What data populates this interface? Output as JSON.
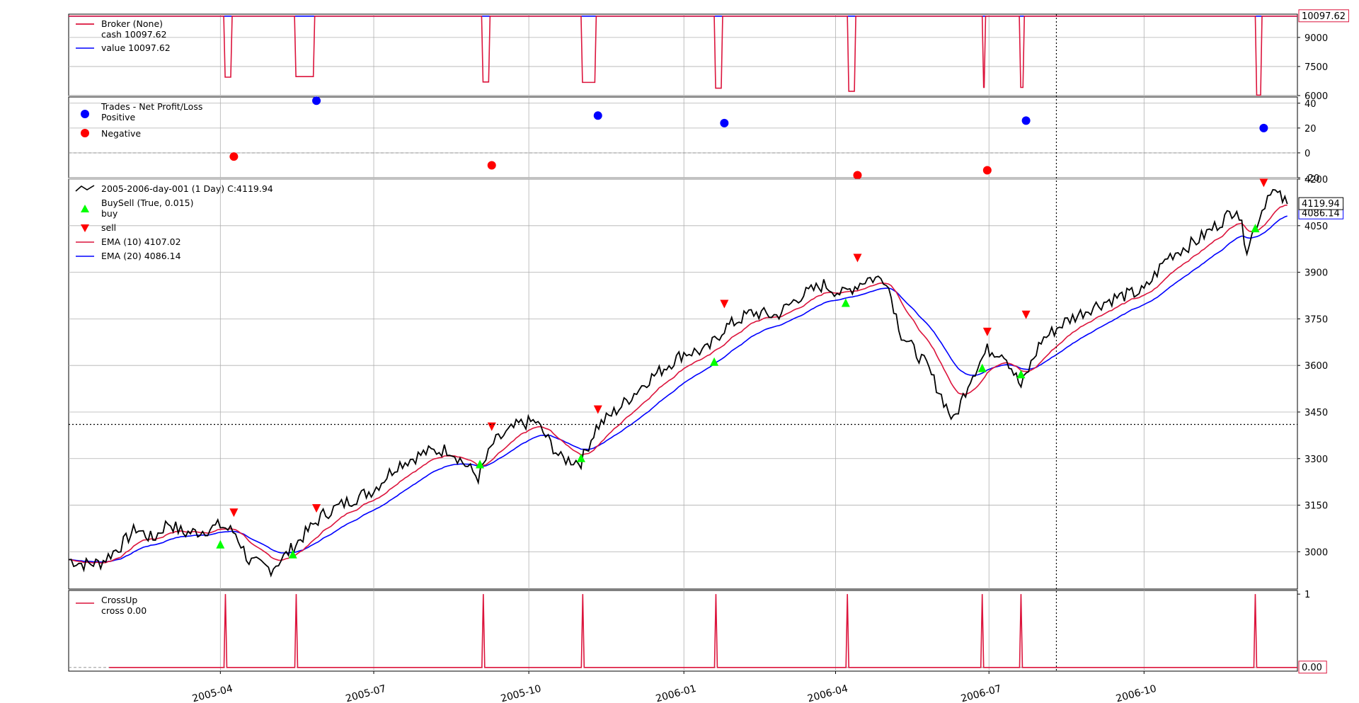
{
  "chart_data": [
    {
      "panel": "broker",
      "type": "line",
      "legend": {
        "title": "Broker (None)",
        "entries": [
          {
            "label": "cash 10097.62",
            "color": "#dc143c"
          },
          {
            "label": "value 10097.62",
            "color": "#0000ff"
          }
        ]
      },
      "ylim": [
        6000,
        10200
      ],
      "yticks": [
        "6000",
        "7500",
        "9000"
      ],
      "last_value_label": "10097.62",
      "grid": true,
      "series": [
        {
          "name": "cash",
          "color": "#dc143c",
          "segments": [
            {
              "x0": "2005-04-03",
              "x1": "2005-04-08",
              "low": 6950
            },
            {
              "x0": "2005-05-15",
              "x1": "2005-05-27",
              "low": 6980
            },
            {
              "x0": "2005-09-03",
              "x1": "2005-09-08",
              "low": 6700
            },
            {
              "x0": "2005-11-01",
              "x1": "2005-11-10",
              "low": 6680
            },
            {
              "x0": "2006-01-19",
              "x1": "2006-01-24",
              "low": 6380
            },
            {
              "x0": "2006-04-08",
              "x1": "2006-04-13",
              "low": 6220
            },
            {
              "x0": "2006-06-27",
              "x1": "2006-06-29",
              "low": 6420
            },
            {
              "x0": "2006-07-19",
              "x1": "2006-07-22",
              "low": 6420
            },
            {
              "x0": "2006-12-06",
              "x1": "2006-12-10",
              "low": 6020
            }
          ],
          "baseline": 10097.62
        },
        {
          "name": "value",
          "color": "#0000ff",
          "baseline": 10097.62
        }
      ]
    },
    {
      "panel": "trades",
      "type": "scatter",
      "legend": {
        "title": "Trades - Net Profit/Loss",
        "entries": [
          {
            "label": "Positive",
            "color": "#0000ff"
          },
          {
            "label": "Negative",
            "color": "#ff0000"
          }
        ]
      },
      "ylim": [
        -20,
        45
      ],
      "yticks": [
        "-20",
        "0",
        "20",
        "40"
      ],
      "grid": true,
      "series": [
        {
          "name": "Positive",
          "color": "#0000ff",
          "points": [
            {
              "x": "2005-05-28",
              "y": 42
            },
            {
              "x": "2005-11-11",
              "y": 30
            },
            {
              "x": "2006-01-25",
              "y": 24
            },
            {
              "x": "2006-07-23",
              "y": 26
            },
            {
              "x": "2006-12-11",
              "y": 20
            }
          ]
        },
        {
          "name": "Negative",
          "color": "#ff0000",
          "points": [
            {
              "x": "2005-04-09",
              "y": -3
            },
            {
              "x": "2005-09-09",
              "y": -10
            },
            {
              "x": "2006-04-14",
              "y": -18
            },
            {
              "x": "2006-06-30",
              "y": -14
            }
          ]
        }
      ]
    },
    {
      "panel": "price",
      "type": "line",
      "legend": {
        "entries": [
          {
            "label": "2005-2006-day-001 (1 Day) C:4119.94",
            "color": "#000000",
            "marker": "line"
          },
          {
            "label": "BuySell (True, 0.015)",
            "color": "#00ff00",
            "marker": "none"
          },
          {
            "label": "buy",
            "color": "#00ff00",
            "marker": "triangle-up"
          },
          {
            "label": "sell",
            "color": "#ff0000",
            "marker": "triangle-down"
          },
          {
            "label": "EMA (10) 4107.02",
            "color": "#dc143c",
            "marker": "line"
          },
          {
            "label": "EMA (20) 4086.14",
            "color": "#0000ff",
            "marker": "line"
          }
        ]
      },
      "ylim": [
        2880,
        4200
      ],
      "yticks": [
        "3000",
        "3150",
        "3300",
        "3450",
        "3600",
        "3750",
        "3900",
        "4050",
        "4200"
      ],
      "last_close_label": "4119.94",
      "ema20_label": "4086.14",
      "crosshair_y": 3410,
      "grid": true,
      "close": [
        [
          "2005-01-01",
          2975
        ],
        [
          "2005-01-10",
          2960
        ],
        [
          "2005-01-20",
          2965
        ],
        [
          "2005-02-01",
          3020
        ],
        [
          "2005-02-10",
          3075
        ],
        [
          "2005-02-20",
          3040
        ],
        [
          "2005-03-01",
          3095
        ],
        [
          "2005-03-10",
          3060
        ],
        [
          "2005-03-20",
          3065
        ],
        [
          "2005-04-01",
          3085
        ],
        [
          "2005-04-10",
          3060
        ],
        [
          "2005-04-18",
          2970
        ],
        [
          "2005-05-01",
          2945
        ],
        [
          "2005-05-10",
          2990
        ],
        [
          "2005-05-20",
          3050
        ],
        [
          "2005-06-01",
          3120
        ],
        [
          "2005-06-15",
          3160
        ],
        [
          "2005-07-01",
          3200
        ],
        [
          "2005-07-15",
          3280
        ],
        [
          "2005-08-01",
          3320
        ],
        [
          "2005-08-15",
          3330
        ],
        [
          "2005-09-01",
          3240
        ],
        [
          "2005-09-10",
          3350
        ],
        [
          "2005-09-25",
          3410
        ],
        [
          "2005-10-05",
          3420
        ],
        [
          "2005-10-20",
          3300
        ],
        [
          "2005-11-01",
          3290
        ],
        [
          "2005-11-10",
          3400
        ],
        [
          "2005-11-25",
          3470
        ],
        [
          "2005-12-10",
          3550
        ],
        [
          "2006-01-01",
          3640
        ],
        [
          "2006-01-15",
          3650
        ],
        [
          "2006-01-25",
          3720
        ],
        [
          "2006-02-10",
          3770
        ],
        [
          "2006-02-25",
          3760
        ],
        [
          "2006-03-10",
          3820
        ],
        [
          "2006-03-25",
          3860
        ],
        [
          "2006-04-05",
          3830
        ],
        [
          "2006-04-20",
          3880
        ],
        [
          "2006-05-01",
          3880
        ],
        [
          "2006-05-10",
          3700
        ],
        [
          "2006-05-25",
          3600
        ],
        [
          "2006-06-10",
          3420
        ],
        [
          "2006-06-20",
          3560
        ],
        [
          "2006-06-30",
          3650
        ],
        [
          "2006-07-10",
          3640
        ],
        [
          "2006-07-20",
          3530
        ],
        [
          "2006-08-01",
          3680
        ],
        [
          "2006-08-15",
          3740
        ],
        [
          "2006-09-01",
          3790
        ],
        [
          "2006-09-15",
          3820
        ],
        [
          "2006-10-01",
          3840
        ],
        [
          "2006-10-15",
          3950
        ],
        [
          "2006-11-01",
          4000
        ],
        [
          "2006-11-15",
          4060
        ],
        [
          "2006-11-25",
          4110
        ],
        [
          "2006-12-01",
          3980
        ],
        [
          "2006-12-10",
          4100
        ],
        [
          "2006-12-15",
          4170
        ],
        [
          "2006-12-25",
          4119.94
        ]
      ],
      "buy": [
        {
          "x": "2005-04-01",
          "y": 3022
        },
        {
          "x": "2005-05-14",
          "y": 2990
        },
        {
          "x": "2005-09-02",
          "y": 3280
        },
        {
          "x": "2005-11-01",
          "y": 3300
        },
        {
          "x": "2006-01-19",
          "y": 3610
        },
        {
          "x": "2006-04-07",
          "y": 3800
        },
        {
          "x": "2006-06-27",
          "y": 3590
        },
        {
          "x": "2006-07-20",
          "y": 3570
        },
        {
          "x": "2006-12-06",
          "y": 4040
        }
      ],
      "sell": [
        {
          "x": "2005-04-09",
          "y": 3128
        },
        {
          "x": "2005-05-28",
          "y": 3142
        },
        {
          "x": "2005-09-09",
          "y": 3405
        },
        {
          "x": "2005-11-11",
          "y": 3460
        },
        {
          "x": "2006-01-25",
          "y": 3800
        },
        {
          "x": "2006-04-14",
          "y": 3948
        },
        {
          "x": "2006-06-30",
          "y": 3710
        },
        {
          "x": "2006-07-23",
          "y": 3765
        },
        {
          "x": "2006-12-11",
          "y": 4190
        }
      ]
    },
    {
      "panel": "crossup",
      "type": "line",
      "legend": {
        "title": "CrossUp",
        "entries": [
          {
            "label": "cross 0.00",
            "color": "#dc143c"
          }
        ]
      },
      "ylim": [
        0,
        1
      ],
      "yticks": [
        "1"
      ],
      "last_value_label": "0.00",
      "spikes": [
        "2005-04-04",
        "2005-05-16",
        "2005-09-04",
        "2005-11-02",
        "2006-01-20",
        "2006-04-08",
        "2006-06-27",
        "2006-07-20",
        "2006-12-06"
      ]
    }
  ],
  "x_axis": {
    "range": [
      "2005-01-01",
      "2006-12-31"
    ],
    "ticks": [
      "2005-04",
      "2005-07",
      "2005-10",
      "2006-01",
      "2006-04",
      "2006-07",
      "2006-10"
    ],
    "crosshair_x": "2006-08-10"
  }
}
